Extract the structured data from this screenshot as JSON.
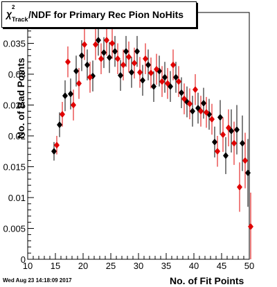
{
  "title": {
    "chi": "χ",
    "sup": "2",
    "sub": "Track",
    "rest": "/NDF for Primary Rec Pion NoHits"
  },
  "timestamp": "Wed Aug 23 14:18:09 2017",
  "chart_data": {
    "type": "scatter",
    "xlabel": "No. of Fit Points",
    "ylabel": "No. of Bad Points",
    "xlim": [
      10,
      50
    ],
    "ylim": [
      0,
      0.04
    ],
    "x_ticks": [
      10,
      15,
      20,
      25,
      30,
      35,
      40,
      45,
      50
    ],
    "y_ticks": [
      0,
      0.005,
      0.01,
      0.015,
      0.02,
      0.025,
      0.03,
      0.035
    ],
    "y_tick_labels": [
      "0",
      "0.005",
      "0.01",
      "0.015",
      "0.02",
      "0.025",
      "0.03",
      "0.035"
    ],
    "series": [
      {
        "color": "#000000",
        "x": [
          15,
          16,
          17,
          18,
          19,
          20,
          21,
          22,
          23,
          24,
          25,
          26,
          27,
          28,
          29,
          30,
          31,
          32,
          33,
          34,
          35,
          36,
          37,
          38,
          39,
          40,
          41,
          42,
          43,
          44,
          45,
          46,
          47,
          48,
          49,
          50
        ],
        "y": [
          0.0175,
          0.0218,
          0.0265,
          0.0268,
          0.0305,
          0.033,
          0.0315,
          0.0297,
          0.0355,
          0.0335,
          0.0327,
          0.0337,
          0.0298,
          0.0337,
          0.0303,
          0.0337,
          0.029,
          0.0315,
          0.028,
          0.0305,
          0.0295,
          0.028,
          0.0295,
          0.027,
          0.0255,
          0.024,
          0.0245,
          0.0253,
          0.0235,
          0.019,
          0.023,
          0.0168,
          0.0208,
          0.021,
          0.0188,
          0.014
        ],
        "err": [
          0.0015,
          0.002,
          0.0025,
          0.0025,
          0.0025,
          0.0025,
          0.0025,
          0.0025,
          0.0025,
          0.0025,
          0.0025,
          0.0025,
          0.0025,
          0.0025,
          0.0025,
          0.0025,
          0.0025,
          0.0025,
          0.0025,
          0.0025,
          0.0025,
          0.0025,
          0.0025,
          0.0025,
          0.0025,
          0.0025,
          0.0025,
          0.0025,
          0.0025,
          0.0025,
          0.0028,
          0.003,
          0.0035,
          0.004,
          0.0045,
          0.0055
        ]
      },
      {
        "color": "#e00000",
        "x": [
          15,
          16,
          17,
          18,
          19,
          20,
          21,
          22,
          23,
          24,
          25,
          26,
          27,
          28,
          29,
          30,
          31,
          32,
          33,
          34,
          35,
          36,
          37,
          38,
          39,
          40,
          41,
          42,
          43,
          44,
          45,
          46,
          47,
          48,
          49,
          50
        ],
        "y": [
          0.0185,
          0.0235,
          0.032,
          0.025,
          0.0285,
          0.0348,
          0.0295,
          0.0348,
          0.0325,
          0.0355,
          0.035,
          0.0325,
          0.0315,
          0.0328,
          0.0318,
          0.0303,
          0.0325,
          0.0302,
          0.0308,
          0.0288,
          0.0285,
          0.0315,
          0.0288,
          0.026,
          0.0252,
          0.0275,
          0.024,
          0.0238,
          0.0227,
          0.0175,
          0.0202,
          0.0213,
          0.0188,
          0.0117,
          0.016,
          0.0053
        ]
      }
    ]
  }
}
